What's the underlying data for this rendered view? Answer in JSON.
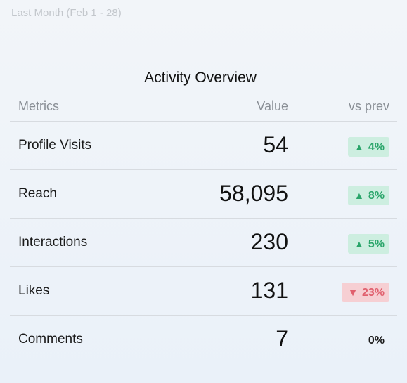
{
  "period_label": "Last Month (Feb 1 - 28)",
  "title": "Activity Overview",
  "columns": {
    "metric": "Metrics",
    "value": "Value",
    "change": "vs prev"
  },
  "rows": [
    {
      "label": "Profile Visits",
      "value": "54",
      "change": "4%",
      "trend": "up",
      "arrow": "▲"
    },
    {
      "label": "Reach",
      "value": "58,095",
      "change": "8%",
      "trend": "up",
      "arrow": "▲"
    },
    {
      "label": "Interactions",
      "value": "230",
      "change": "5%",
      "trend": "up",
      "arrow": "▲"
    },
    {
      "label": "Likes",
      "value": "131",
      "change": "23%",
      "trend": "down",
      "arrow": "▼"
    },
    {
      "label": "Comments",
      "value": "7",
      "change": "0%",
      "trend": "flat",
      "arrow": ""
    }
  ],
  "colors": {
    "up_text": "#2aa56a",
    "up_bg": "#cdeee0",
    "down_text": "#e0606e",
    "down_bg": "#f6cfd3"
  }
}
